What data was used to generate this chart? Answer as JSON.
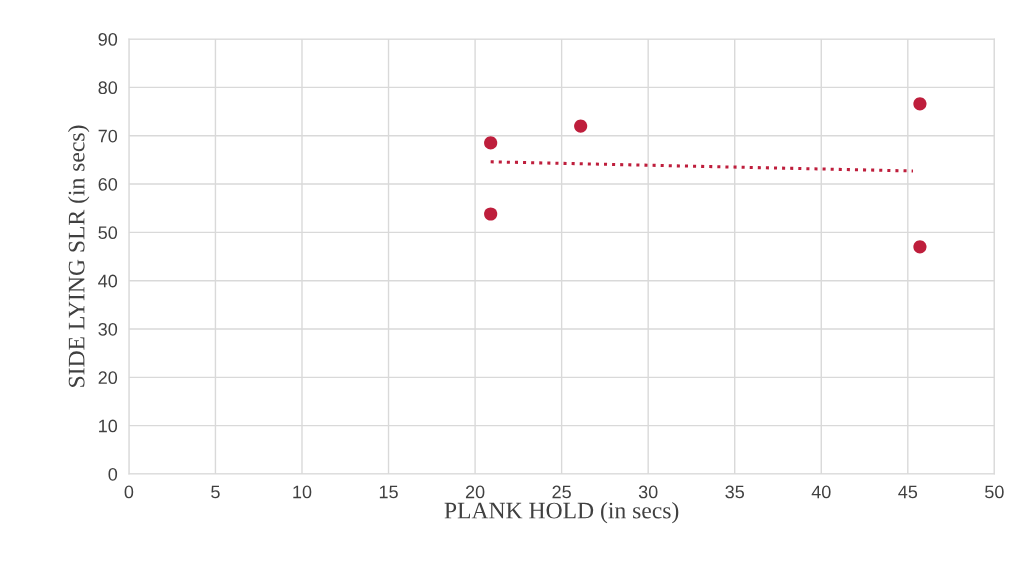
{
  "chart_data": {
    "type": "scatter",
    "xlabel": "PLANK HOLD (in secs)",
    "ylabel": "SIDE LYING SLR (in secs)",
    "xlim": [
      0,
      50
    ],
    "xticks": [
      0,
      5,
      10,
      15,
      20,
      25,
      30,
      35,
      40,
      45,
      50
    ],
    "ylim": [
      0,
      90
    ],
    "yticks": [
      0,
      10,
      20,
      30,
      40,
      50,
      60,
      70,
      80,
      90
    ],
    "grid": true,
    "series": [
      {
        "color": "#be1e3c",
        "marker": "circle",
        "x": [
          20.9,
          20.9,
          26.1,
          45.7,
          45.7
        ],
        "values": [
          68.5,
          53.8,
          72.0,
          76.6,
          47.0
        ]
      },
      {
        "type": "line",
        "line_style": "dotted",
        "color": "#be1e3c",
        "x": [
          20.9,
          45.3
        ],
        "values": [
          64.6,
          62.7
        ]
      }
    ]
  }
}
